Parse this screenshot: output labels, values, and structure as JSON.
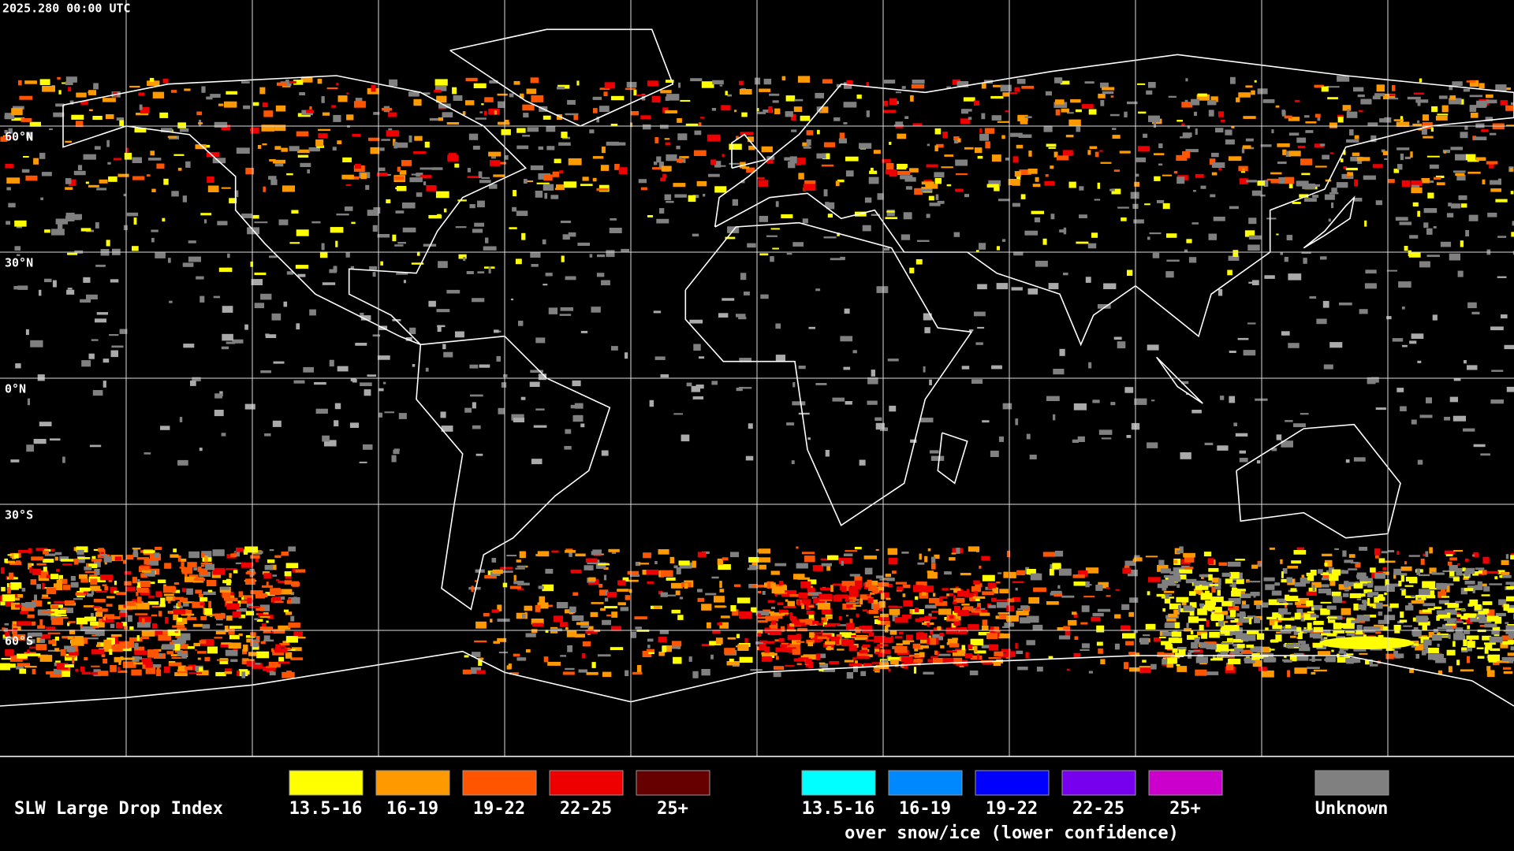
{
  "timestamp": "2025.280 00:00 UTC",
  "lat_labels": [
    "60°N",
    "30°N",
    "0°N",
    "30°S",
    "60°S"
  ],
  "legend": {
    "title": "SLW Large Drop Index",
    "normal": [
      {
        "label": "13.5-16",
        "color": "#ffff00"
      },
      {
        "label": "16-19",
        "color": "#ff9900"
      },
      {
        "label": "19-22",
        "color": "#ff5500"
      },
      {
        "label": "22-25",
        "color": "#ee0000"
      },
      {
        "label": "25+",
        "color": "#660000"
      }
    ],
    "snow_ice": [
      {
        "label": "13.5-16",
        "color": "#00ffff"
      },
      {
        "label": "16-19",
        "color": "#0088ff"
      },
      {
        "label": "19-22",
        "color": "#0000ff"
      },
      {
        "label": "22-25",
        "color": "#7700ee"
      },
      {
        "label": "25+",
        "color": "#cc00cc"
      }
    ],
    "snow_ice_caption": "over snow/ice (lower confidence)",
    "unknown": {
      "label": "Unknown",
      "color": "#808080"
    }
  }
}
